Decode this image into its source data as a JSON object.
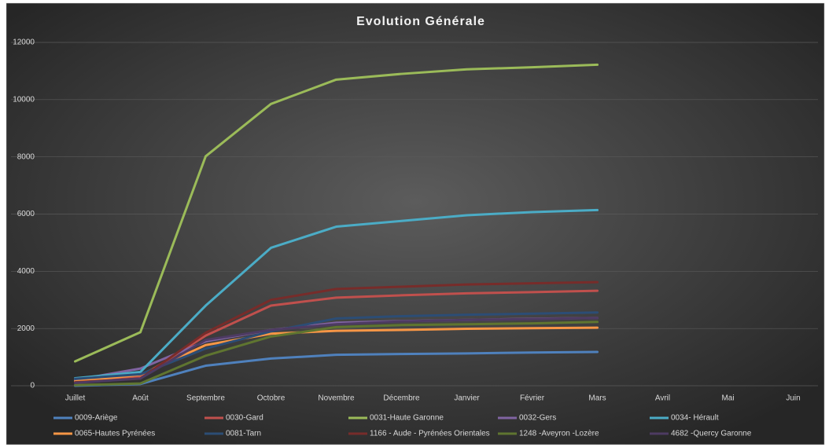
{
  "chart_data": {
    "type": "line",
    "title": "Evolution Générale",
    "categories": [
      "Juillet",
      "Août",
      "Septembre",
      "Octobre",
      "Novembre",
      "Décembre",
      "Janvier",
      "Février",
      "Mars",
      "Avril",
      "Mai",
      "Juin"
    ],
    "ylim": [
      0,
      12000
    ],
    "yticks": [
      0,
      2000,
      4000,
      6000,
      8000,
      10000,
      12000
    ],
    "grid": true,
    "legend": "bottom",
    "series": [
      {
        "name": "0009-Ariège",
        "color": "#4f81bd",
        "values": [
          0,
          60,
          700,
          950,
          1080,
          1110,
          1130,
          1160,
          1180,
          null,
          null,
          null
        ]
      },
      {
        "name": "0030-Gard",
        "color": "#c0504d",
        "values": [
          150,
          300,
          1750,
          2800,
          3080,
          3160,
          3230,
          3270,
          3320,
          null,
          null,
          null
        ]
      },
      {
        "name": "0031-Haute Garonne",
        "color": "#9bbb59",
        "values": [
          850,
          1870,
          8020,
          9850,
          10700,
          10900,
          11060,
          11130,
          11220,
          null,
          null,
          null
        ]
      },
      {
        "name": "0032-Gers",
        "color": "#8064a2",
        "values": [
          200,
          600,
          1550,
          1950,
          2200,
          2260,
          2300,
          2340,
          2370,
          null,
          null,
          null
        ]
      },
      {
        "name": "0034- Hérault",
        "color": "#4bacc6",
        "values": [
          260,
          480,
          2800,
          4820,
          5560,
          5760,
          5960,
          6070,
          6140,
          null,
          null,
          null
        ]
      },
      {
        "name": "0065-Hautes Pyrénées",
        "color": "#f79646",
        "values": [
          150,
          380,
          1420,
          1820,
          1920,
          1950,
          1990,
          2010,
          2030,
          null,
          null,
          null
        ]
      },
      {
        "name": "0081-Tarn",
        "color": "#2c4d75",
        "values": [
          240,
          400,
          1300,
          1900,
          2350,
          2430,
          2480,
          2520,
          2560,
          null,
          null,
          null
        ]
      },
      {
        "name": "1166 - Aude - Pyrénées Orientales",
        "color": "#772c2a",
        "values": [
          120,
          250,
          1850,
          3000,
          3380,
          3460,
          3540,
          3580,
          3620,
          null,
          null,
          null
        ]
      },
      {
        "name": "1248 -Aveyron -Lozère",
        "color": "#5f7530",
        "values": [
          20,
          80,
          1050,
          1720,
          2050,
          2120,
          2150,
          2180,
          2230,
          null,
          null,
          null
        ]
      },
      {
        "name": "4682 -Quercy Garonne",
        "color": "#4d3b62",
        "values": [
          100,
          250,
          1600,
          1950,
          2150,
          2250,
          2300,
          2330,
          2370,
          null,
          null,
          null
        ]
      }
    ]
  }
}
